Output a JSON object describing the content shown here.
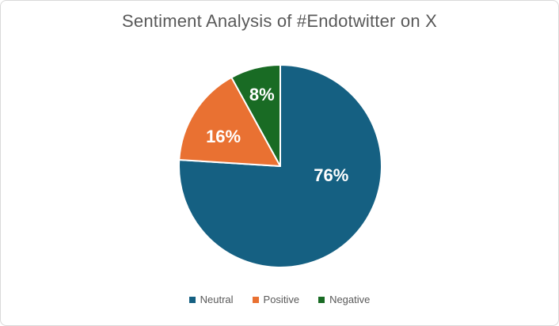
{
  "window": {
    "background_color": "#FFFFFF",
    "border_color": "#D9D9D9"
  },
  "chart_data": {
    "type": "pie",
    "title": "Sentiment Analysis of #Endotwitter on X",
    "categories": [
      "Neutral",
      "Positive",
      "Negative"
    ],
    "values": [
      76,
      16,
      8
    ],
    "data_labels": [
      "76%",
      "16%",
      "8%"
    ],
    "colors": [
      "#156082",
      "#E97132",
      "#196B24"
    ],
    "slice_border_color": "#FFFFFF",
    "data_label_color": "#FFFFFF",
    "title_color": "#595959",
    "legend_text_color": "#595959",
    "legend_position": "bottom",
    "start_angle_deg": 0,
    "direction": "clockwise"
  }
}
